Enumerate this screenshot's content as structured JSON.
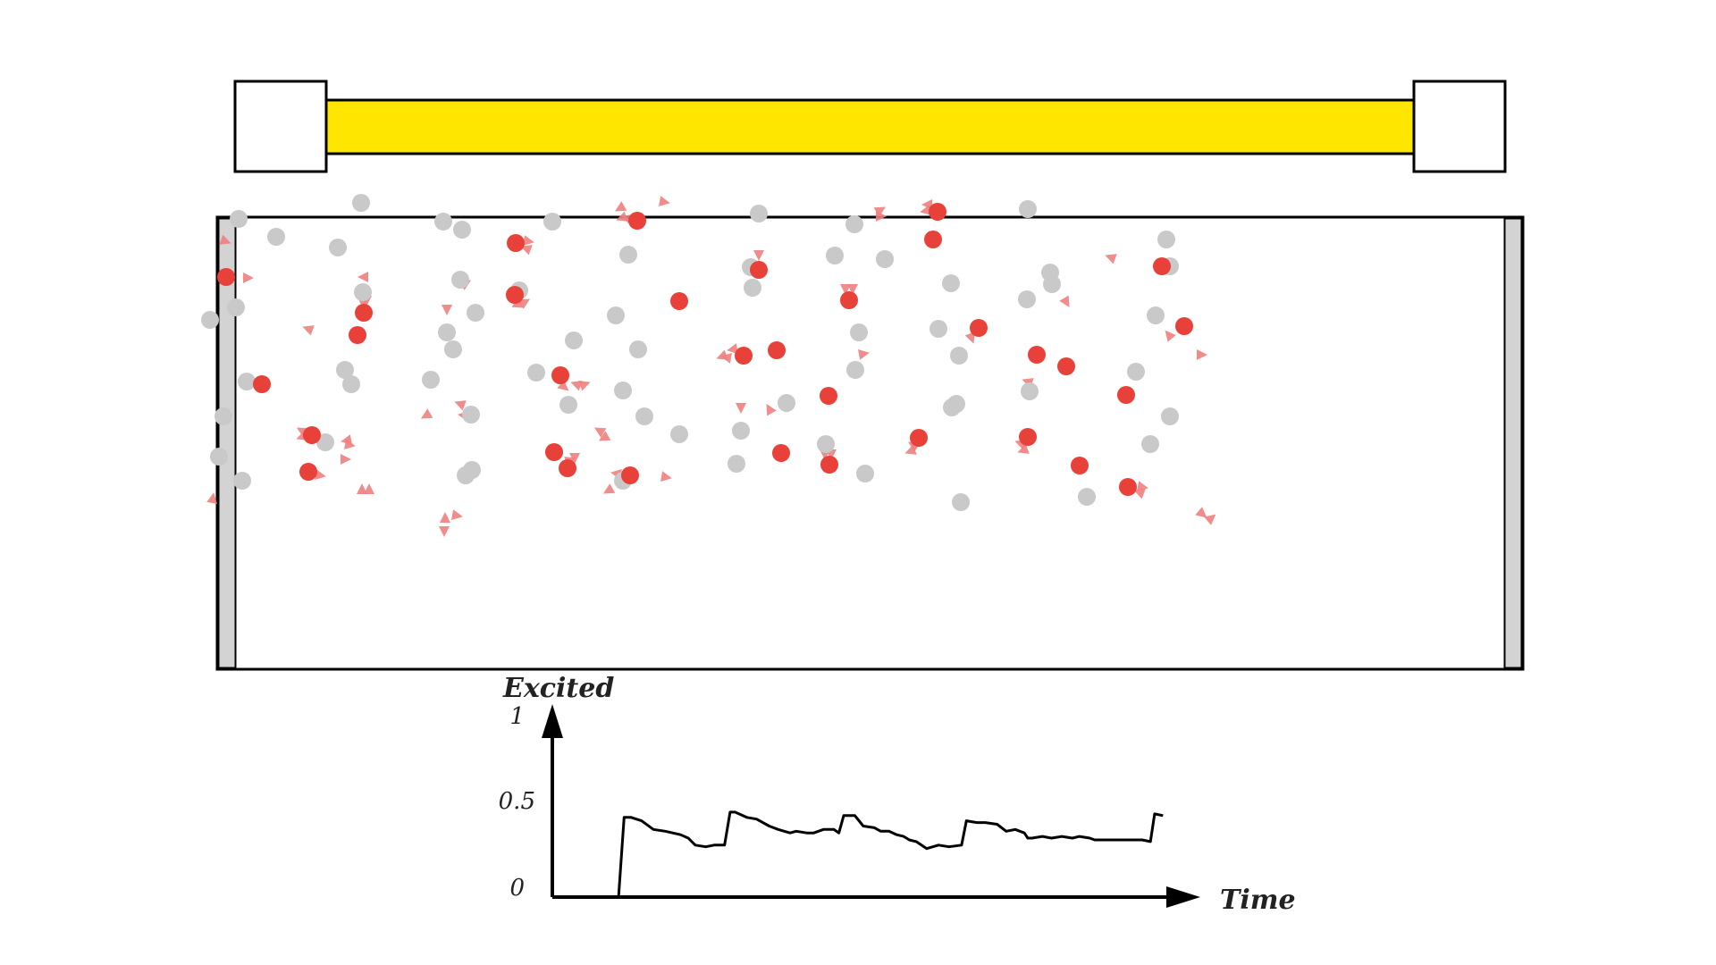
{
  "lamp": {
    "tube_color": "#ffe600"
  },
  "chamber": {
    "wall_color": "#d3d3d3"
  },
  "colors": {
    "excited": "#e8413a",
    "ground": "#c9c9c9",
    "photon": "#f08080",
    "line": "#000000"
  },
  "particles": {
    "excited": [
      [
        253,
        310
      ],
      [
        293,
        430
      ],
      [
        349,
        487
      ],
      [
        345,
        528
      ],
      [
        407,
        350
      ],
      [
        400,
        375
      ],
      [
        577,
        272
      ],
      [
        576,
        330
      ],
      [
        627,
        420
      ],
      [
        620,
        506
      ],
      [
        635,
        524
      ],
      [
        713,
        247
      ],
      [
        760,
        337
      ],
      [
        705,
        532
      ],
      [
        832,
        398
      ],
      [
        849,
        302
      ],
      [
        869,
        392
      ],
      [
        874,
        507
      ],
      [
        927,
        443
      ],
      [
        950,
        336
      ],
      [
        928,
        520
      ],
      [
        1049,
        237
      ],
      [
        1044,
        268
      ],
      [
        1095,
        367
      ],
      [
        1028,
        490
      ],
      [
        1160,
        397
      ],
      [
        1193,
        410
      ],
      [
        1150,
        489
      ],
      [
        1208,
        521
      ],
      [
        1260,
        442
      ],
      [
        1262,
        545
      ],
      [
        1325,
        365
      ],
      [
        1300,
        298
      ]
    ],
    "ground": [
      [
        267,
        245
      ],
      [
        309,
        265
      ],
      [
        235,
        358
      ],
      [
        264,
        344
      ],
      [
        276,
        427
      ],
      [
        250,
        466
      ],
      [
        245,
        511
      ],
      [
        271,
        538
      ],
      [
        404,
        227
      ],
      [
        378,
        277
      ],
      [
        406,
        327
      ],
      [
        386,
        414
      ],
      [
        393,
        430
      ],
      [
        364,
        495
      ],
      [
        496,
        248
      ],
      [
        517,
        257
      ],
      [
        515,
        313
      ],
      [
        532,
        350
      ],
      [
        500,
        372
      ],
      [
        507,
        391
      ],
      [
        482,
        425
      ],
      [
        527,
        464
      ],
      [
        528,
        526
      ],
      [
        521,
        532
      ],
      [
        618,
        248
      ],
      [
        581,
        325
      ],
      [
        642,
        381
      ],
      [
        600,
        417
      ],
      [
        636,
        453
      ],
      [
        703,
        285
      ],
      [
        689,
        353
      ],
      [
        714,
        391
      ],
      [
        697,
        437
      ],
      [
        721,
        466
      ],
      [
        760,
        486
      ],
      [
        697,
        538
      ],
      [
        849,
        239
      ],
      [
        840,
        299
      ],
      [
        842,
        322
      ],
      [
        829,
        482
      ],
      [
        880,
        451
      ],
      [
        824,
        519
      ],
      [
        956,
        251
      ],
      [
        934,
        286
      ],
      [
        990,
        290
      ],
      [
        961,
        372
      ],
      [
        957,
        414
      ],
      [
        924,
        497
      ],
      [
        968,
        530
      ],
      [
        1150,
        234
      ],
      [
        1175,
        305
      ],
      [
        1177,
        318
      ],
      [
        1149,
        335
      ],
      [
        1064,
        317
      ],
      [
        1050,
        368
      ],
      [
        1073,
        398
      ],
      [
        1070,
        452
      ],
      [
        1065,
        456
      ],
      [
        1152,
        438
      ],
      [
        1075,
        562
      ],
      [
        1216,
        556
      ],
      [
        1305,
        268
      ],
      [
        1309,
        298
      ],
      [
        1293,
        353
      ],
      [
        1271,
        416
      ],
      [
        1309,
        466
      ],
      [
        1287,
        497
      ]
    ],
    "photons": [
      [
        252,
        270,
        20
      ],
      [
        277,
        311,
        0
      ],
      [
        345,
        368,
        200
      ],
      [
        238,
        558,
        280
      ],
      [
        407,
        310,
        180
      ],
      [
        406,
        338,
        90
      ],
      [
        410,
        336,
        90
      ],
      [
        338,
        482,
        210
      ],
      [
        338,
        489,
        160
      ],
      [
        388,
        493,
        170
      ],
      [
        391,
        498,
        10
      ],
      [
        386,
        514,
        0
      ],
      [
        358,
        532,
        10
      ],
      [
        405,
        548,
        270
      ],
      [
        413,
        548,
        270
      ],
      [
        500,
        346,
        90
      ],
      [
        498,
        372,
        0
      ],
      [
        516,
        313,
        0
      ],
      [
        521,
        317,
        330
      ],
      [
        477,
        465,
        150
      ],
      [
        515,
        452,
        200
      ],
      [
        519,
        465,
        190
      ],
      [
        498,
        580,
        270
      ],
      [
        497,
        594,
        90
      ],
      [
        511,
        577,
        10
      ],
      [
        591,
        270,
        10
      ],
      [
        589,
        278,
        200
      ],
      [
        580,
        341,
        30
      ],
      [
        587,
        338,
        330
      ],
      [
        645,
        430,
        200
      ],
      [
        654,
        430,
        340
      ],
      [
        631,
        433,
        40
      ],
      [
        643,
        512,
        90
      ],
      [
        638,
        515,
        340
      ],
      [
        671,
        482,
        210
      ],
      [
        676,
        490,
        150
      ],
      [
        681,
        549,
        150
      ],
      [
        690,
        530,
        190
      ],
      [
        696,
        244,
        160
      ],
      [
        702,
        244,
        200
      ],
      [
        694,
        233,
        150
      ],
      [
        743,
        226,
        10
      ],
      [
        745,
        534,
        10
      ],
      [
        808,
        399,
        160
      ],
      [
        813,
        400,
        190
      ],
      [
        820,
        391,
        170
      ],
      [
        849,
        285,
        90
      ],
      [
        829,
        456,
        90
      ],
      [
        861,
        458,
        240
      ],
      [
        923,
        508,
        90
      ],
      [
        930,
        508,
        90
      ],
      [
        946,
        323,
        90
      ],
      [
        954,
        323,
        90
      ],
      [
        966,
        396,
        350
      ],
      [
        985,
        235,
        330
      ],
      [
        985,
        242,
        0
      ],
      [
        1036,
        236,
        170
      ],
      [
        1038,
        229,
        180
      ],
      [
        1022,
        498,
        210
      ],
      [
        1019,
        505,
        160
      ],
      [
        1087,
        378,
        70
      ],
      [
        1142,
        496,
        200
      ],
      [
        1145,
        504,
        160
      ],
      [
        1150,
        427,
        200
      ],
      [
        1193,
        338,
        60
      ],
      [
        1243,
        288,
        200
      ],
      [
        1278,
        545,
        10
      ],
      [
        1275,
        551,
        200
      ],
      [
        1308,
        375,
        230
      ],
      [
        1344,
        397,
        0
      ],
      [
        1345,
        575,
        40
      ],
      [
        1355,
        580,
        320
      ]
    ]
  },
  "chart_data": {
    "type": "line",
    "title": "",
    "xlabel": "Time",
    "ylabel": "Excited",
    "ylim": [
      0,
      1
    ],
    "y_ticks": [
      "0",
      "0.5",
      "1"
    ],
    "x_ticks": [],
    "legend": "none",
    "grid": false,
    "series": [
      {
        "name": "",
        "x": [
          0,
          0.095,
          0.103,
          0.113,
          0.128,
          0.145,
          0.162,
          0.184,
          0.195,
          0.205,
          0.22,
          0.232,
          0.247,
          0.255,
          0.262,
          0.279,
          0.293,
          0.311,
          0.324,
          0.341,
          0.35,
          0.365,
          0.375,
          0.389,
          0.404,
          0.411,
          0.418,
          0.434,
          0.446,
          0.462,
          0.471,
          0.483,
          0.494,
          0.504,
          0.512,
          0.522,
          0.537,
          0.554,
          0.569,
          0.587,
          0.594,
          0.609,
          0.621,
          0.638,
          0.651,
          0.664,
          0.677,
          0.682,
          0.688,
          0.703,
          0.716,
          0.731,
          0.746,
          0.756,
          0.771,
          0.778,
          0.788,
          0.802,
          0.815,
          0.825,
          0.838,
          0.846,
          0.858,
          0.864,
          0.876
        ],
        "values": [
          0,
          0,
          0.46,
          0.46,
          0.44,
          0.39,
          0.38,
          0.36,
          0.34,
          0.3,
          0.29,
          0.3,
          0.3,
          0.49,
          0.49,
          0.46,
          0.45,
          0.41,
          0.39,
          0.37,
          0.38,
          0.37,
          0.37,
          0.39,
          0.39,
          0.37,
          0.47,
          0.47,
          0.41,
          0.4,
          0.38,
          0.38,
          0.36,
          0.35,
          0.33,
          0.32,
          0.28,
          0.3,
          0.29,
          0.3,
          0.44,
          0.43,
          0.43,
          0.42,
          0.38,
          0.39,
          0.37,
          0.34,
          0.34,
          0.35,
          0.34,
          0.35,
          0.34,
          0.35,
          0.34,
          0.33,
          0.33,
          0.33,
          0.33,
          0.33,
          0.33,
          0.33,
          0.32,
          0.48,
          0.47
        ]
      }
    ]
  }
}
